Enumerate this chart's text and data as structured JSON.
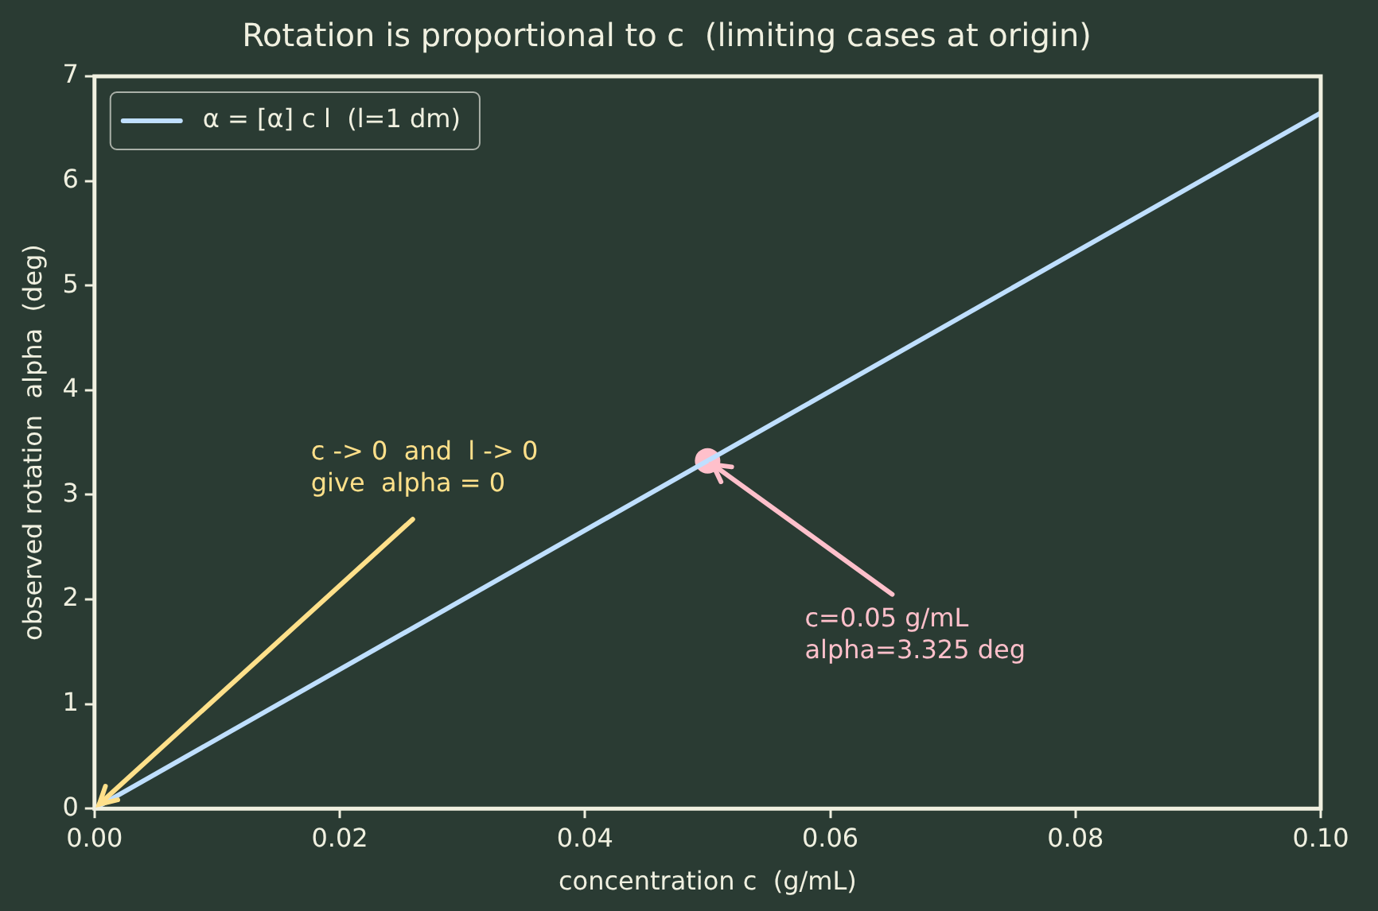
{
  "chart_data": {
    "type": "line",
    "title": "Rotation is proportional to c  (limiting cases at origin)",
    "xlabel": "concentration c  (g/mL)",
    "ylabel": "observed rotation  alpha  (deg)",
    "xlim": [
      0,
      0.1
    ],
    "ylim": [
      0,
      7
    ],
    "xticks": [
      {
        "value": 0,
        "label": "0.00"
      },
      {
        "value": 0.02,
        "label": "0.02"
      },
      {
        "value": 0.04,
        "label": "0.04"
      },
      {
        "value": 0.06,
        "label": "0.06"
      },
      {
        "value": 0.08,
        "label": "0.08"
      },
      {
        "value": 0.1,
        "label": "0.10"
      }
    ],
    "yticks": [
      0,
      1,
      2,
      3,
      4,
      5,
      6,
      7
    ],
    "series": [
      {
        "name": "α = [α] c l  (l=1 dm)",
        "color": "#bfdfff",
        "x": [
          0,
          0.1
        ],
        "values": [
          0,
          6.65
        ]
      },
      {
        "type": "scatter",
        "color": "#ffc0cb",
        "x": [
          0.05
        ],
        "values": [
          3.325
        ],
        "marker": "circle"
      }
    ],
    "annotations": [
      {
        "text": "c -> 0  and  l -> 0\ngive  alpha = 0",
        "x": 0,
        "y": 0
      },
      {
        "text": "c=0.05 g/mL\nalpha=3.325 deg",
        "x": 0.05,
        "y": 3.325
      }
    ],
    "legend": "top left",
    "grid": false
  }
}
